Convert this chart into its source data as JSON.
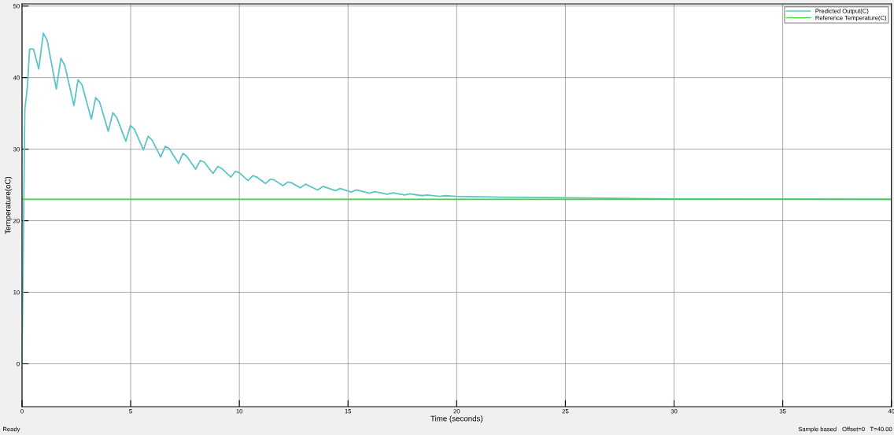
{
  "chart_data": {
    "type": "line",
    "xlabel": "Time (seconds)",
    "ylabel": "Temperature(oC)",
    "xlim": [
      0,
      40
    ],
    "ylim": [
      -6,
      50.3
    ],
    "xticks": [
      0,
      5,
      10,
      15,
      20,
      25,
      30,
      35,
      40
    ],
    "yticks": [
      0,
      10,
      20,
      30,
      40,
      50
    ],
    "grid": true,
    "legend": "top right",
    "line_style": "solid",
    "marker": "none",
    "annotations": [
      "Ready",
      "Sample based",
      "Offset=0",
      "T=40.00"
    ],
    "series": [
      {
        "name": "Predicted Output(C)",
        "color": "#5cc6c6",
        "x": [
          0,
          0.13,
          0.25,
          0.35,
          0.53,
          0.77,
          0.98,
          1.16,
          1.58,
          1.79,
          1.97,
          2.39,
          2.58,
          2.76,
          3.19,
          3.39,
          3.57,
          3.97,
          4.18,
          4.36,
          4.78,
          4.99,
          5.17,
          5.59,
          5.8,
          5.98,
          6.38,
          6.59,
          6.77,
          7.2,
          7.4,
          7.58,
          7.99,
          8.2,
          8.38,
          8.79,
          9.01,
          9.19,
          9.61,
          9.82,
          10.0,
          10.4,
          10.62,
          10.8,
          11.2,
          11.43,
          11.6,
          12.0,
          12.23,
          12.4,
          12.8,
          13.04,
          13.6,
          13.85,
          14.42,
          14.64,
          15.14,
          15.38,
          15.99,
          16.23,
          16.8,
          17.07,
          17.6,
          17.85,
          18.4,
          18.63,
          19.2,
          19.45,
          20.0,
          22.0,
          25.0,
          28.0,
          30.0,
          40.0
        ],
        "values": [
          0,
          35.5,
          38.8,
          44.0,
          44.0,
          41.2,
          46.2,
          45.2,
          38.4,
          42.7,
          41.7,
          36.1,
          39.7,
          39.0,
          34.2,
          37.2,
          36.6,
          32.5,
          35.1,
          34.4,
          31.1,
          33.3,
          32.8,
          29.9,
          31.8,
          31.3,
          28.9,
          30.4,
          30.1,
          28.0,
          29.4,
          29.0,
          27.2,
          28.4,
          28.2,
          26.6,
          27.6,
          27.3,
          26.1,
          26.9,
          26.7,
          25.6,
          26.3,
          26.1,
          25.2,
          25.8,
          25.7,
          24.9,
          25.4,
          25.3,
          24.6,
          25.1,
          24.3,
          24.8,
          24.2,
          24.5,
          24.0,
          24.3,
          23.85,
          24.05,
          23.7,
          23.9,
          23.6,
          23.75,
          23.5,
          23.6,
          23.4,
          23.5,
          23.4,
          23.3,
          23.2,
          23.1,
          23.05,
          23.0
        ]
      },
      {
        "name": "Reference Temperature(C)",
        "color": "#3fd13f",
        "x": [
          0,
          40
        ],
        "values": [
          23,
          23
        ]
      }
    ]
  }
}
